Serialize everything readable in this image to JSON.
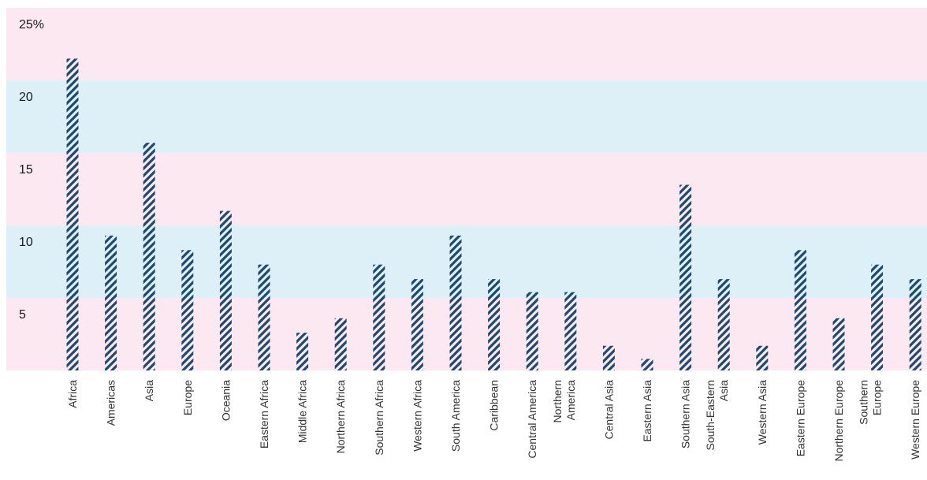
{
  "chart_data": {
    "type": "bar",
    "title": "",
    "xlabel": "",
    "ylabel": "",
    "ylim": [
      0,
      25
    ],
    "y_ticks": [
      {
        "value": 5,
        "label": "5"
      },
      {
        "value": 10,
        "label": "10"
      },
      {
        "value": 15,
        "label": "15"
      },
      {
        "value": 20,
        "label": "20"
      },
      {
        "value": 25,
        "label": "25%"
      }
    ],
    "band_boundaries": [
      0,
      5,
      10,
      15,
      20,
      25
    ],
    "categories": [
      [
        "Africa"
      ],
      [
        "Americas"
      ],
      [
        "Asia"
      ],
      [
        "Europe"
      ],
      [
        "Oceania"
      ],
      [
        "Eastern Africa"
      ],
      [
        "Middle Africa"
      ],
      [
        "Northern Africa"
      ],
      [
        "Southern Africa"
      ],
      [
        "Western Africa"
      ],
      [
        "South America"
      ],
      [
        "Caribbean"
      ],
      [
        "Central America"
      ],
      [
        "Northern",
        "America"
      ],
      [
        "Central Asia"
      ],
      [
        "Eastern Asia"
      ],
      [
        "Southern Asia"
      ],
      [
        "South-Eastern",
        "Asia"
      ],
      [
        "Western Asia"
      ],
      [
        "Eastern Europe"
      ],
      [
        "Northern Europe"
      ],
      [
        "Southern",
        "Europe"
      ],
      [
        "Western Europe"
      ]
    ],
    "values": [
      21.5,
      9.3,
      15.7,
      8.3,
      11.0,
      7.3,
      2.6,
      3.6,
      7.3,
      6.3,
      9.3,
      6.3,
      5.4,
      5.4,
      1.7,
      0.8,
      12.8,
      6.3,
      1.7,
      8.3,
      3.6,
      7.3,
      6.3
    ],
    "grid": false,
    "legend": "none",
    "colors": {
      "band_pink": "#fce8f1",
      "band_blue": "#ddf0f8",
      "bar_stripe": "#1e4a72"
    }
  }
}
